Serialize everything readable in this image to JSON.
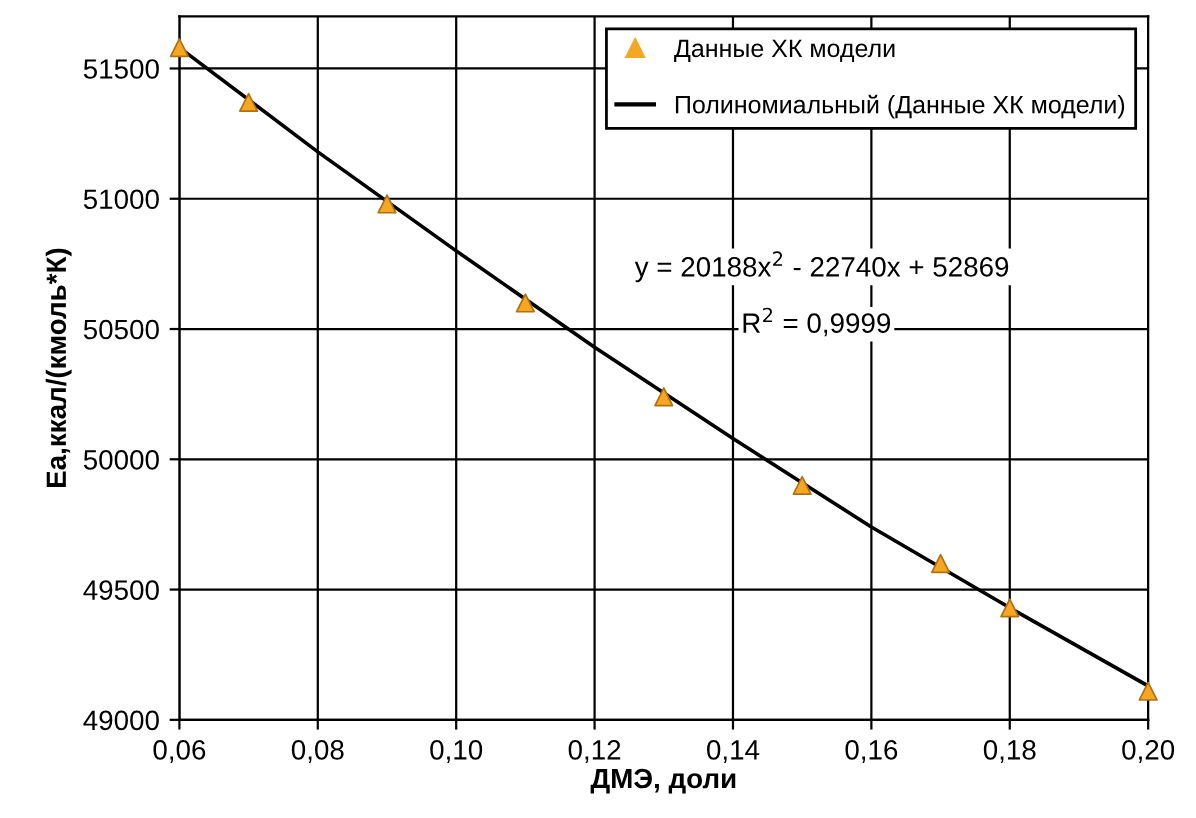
{
  "chart_data": {
    "type": "scatter",
    "xlabel": "ДМЭ, доли",
    "ylabel": "Ea,ккал/(кмоль*К)",
    "xlim": [
      0.06,
      0.2
    ],
    "xticks": [
      {
        "value": 0.06,
        "label": "0,06"
      },
      {
        "value": 0.08,
        "label": "0,08"
      },
      {
        "value": 0.1,
        "label": "0,10"
      },
      {
        "value": 0.12,
        "label": "0,12"
      },
      {
        "value": 0.14,
        "label": "0,14"
      },
      {
        "value": 0.16,
        "label": "0,16"
      },
      {
        "value": 0.18,
        "label": "0,18"
      },
      {
        "value": 0.2,
        "label": "0,20"
      }
    ],
    "ylim": [
      49000,
      51700
    ],
    "yticks": [
      49000,
      49500,
      50000,
      50500,
      51000,
      51500
    ],
    "grid": true,
    "legend": "top right",
    "series": [
      {
        "name": "Данные ХК модели",
        "marker": "triangle",
        "color": "#f5a623",
        "x": [
          0.06,
          0.07,
          0.09,
          0.11,
          0.13,
          0.15,
          0.17,
          0.18,
          0.2
        ],
        "values": [
          51580,
          51370,
          50980,
          50600,
          50240,
          49900,
          49600,
          49430,
          49110
        ]
      },
      {
        "name": "Полиномиальный (Данные ХК модели)",
        "type": "line",
        "color": "#000000",
        "line_style": "solid",
        "x": [
          0.06,
          0.08,
          0.1,
          0.12,
          0.14,
          0.16,
          0.18,
          0.2
        ],
        "values": [
          51580,
          51180,
          50800,
          50430,
          50080,
          49740,
          49430,
          49130
        ]
      }
    ],
    "annotations": [
      {
        "text": "y = 20188x$^{2}$ - 22740x + 52869"
      },
      {
        "text": "R$^{2}$ = 0,9999"
      }
    ]
  }
}
